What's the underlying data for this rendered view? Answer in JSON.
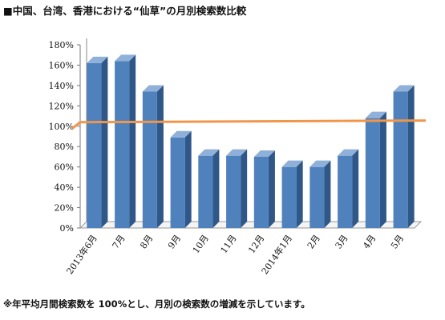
{
  "title": "■中国、台湾、香港における“仙草”の月別検索数比較",
  "footnote": "※年平均月間検索数を 100%とし、月別の検索数の増減を示しています。",
  "chart_data": {
    "type": "bar",
    "title": "",
    "xlabel": "",
    "ylabel": "",
    "categories": [
      "2013年6月",
      "7月",
      "8月",
      "9月",
      "10月",
      "11月",
      "12月",
      "2014年1月",
      "2月",
      "3月",
      "4月",
      "5月"
    ],
    "values": [
      162,
      164,
      134,
      89,
      71,
      71,
      70,
      60,
      60,
      71,
      108,
      134
    ],
    "value_unit": "%",
    "y_ticks": [
      "0%",
      "20%",
      "40%",
      "60%",
      "80%",
      "100%",
      "120%",
      "140%",
      "160%",
      "180%"
    ],
    "ylim": [
      0,
      180
    ],
    "reference_line": {
      "value": 104,
      "color": "#f0964b"
    },
    "bar_color": "#4f81bd",
    "bar_side_color": "#2f5787",
    "bar_top_color": "#8fb0d8",
    "grid": false,
    "legend": "none",
    "style": "3d-column"
  }
}
